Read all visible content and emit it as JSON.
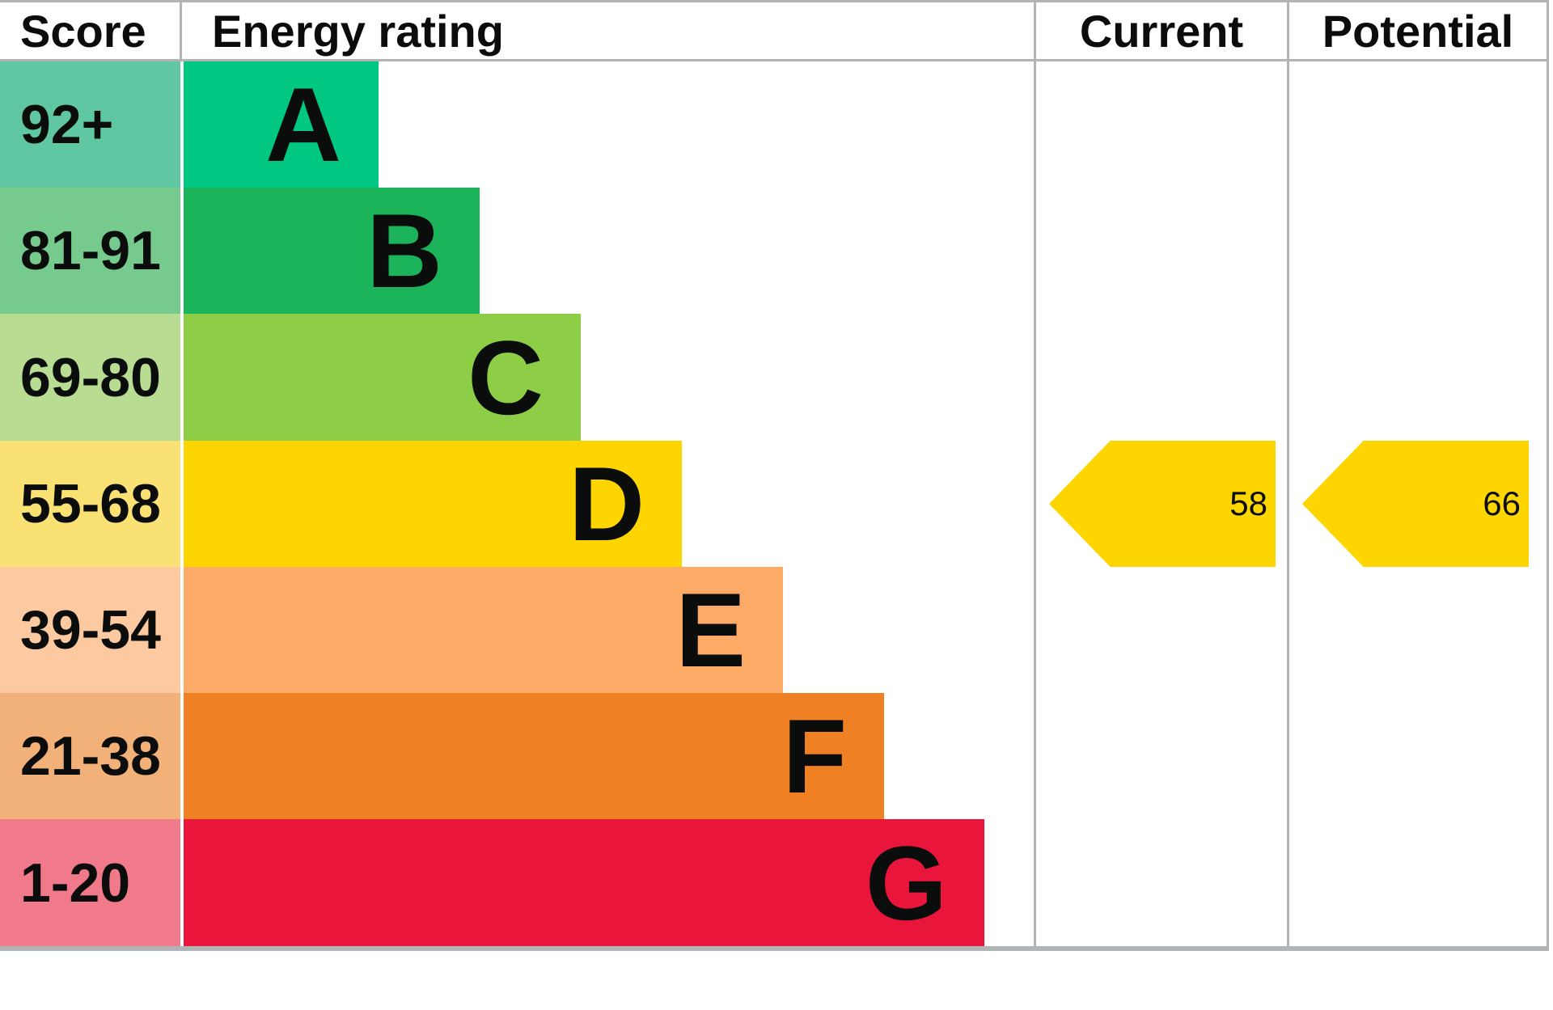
{
  "header": {
    "score": "Score",
    "energy_rating": "Energy rating",
    "current": "Current",
    "potential": "Potential"
  },
  "bands": [
    {
      "letter": "A",
      "score_range": "92+",
      "color": "#00c781",
      "tint": "#5fc7a1"
    },
    {
      "letter": "B",
      "score_range": "81-91",
      "color": "#1cb45a",
      "tint": "#76ca8e"
    },
    {
      "letter": "C",
      "score_range": "69-80",
      "color": "#8dce46",
      "tint": "#b8dc92"
    },
    {
      "letter": "D",
      "score_range": "55-68",
      "color": "#ffd500",
      "tint": "#fae174"
    },
    {
      "letter": "E",
      "score_range": "39-54",
      "color": "#fcaa65",
      "tint": "#fcc9a1"
    },
    {
      "letter": "F",
      "score_range": "21-38",
      "color": "#ef8023",
      "tint": "#f2b179"
    },
    {
      "letter": "G",
      "score_range": "1-20",
      "color": "#e9153b",
      "tint": "#f0798a"
    }
  ],
  "markers": {
    "current": {
      "value": "58",
      "band": "D",
      "arrow_color": "#ffd500"
    },
    "potential": {
      "value": "66",
      "band": "D",
      "arrow_color": "#ffd500"
    }
  },
  "colors": {
    "border": "#b1b4b6",
    "text": "#0b0c0c",
    "background": "#ffffff"
  },
  "chart_data": {
    "type": "bar",
    "title": "Energy rating",
    "orientation": "horizontal",
    "categories": [
      "A",
      "B",
      "C",
      "D",
      "E",
      "F",
      "G"
    ],
    "score_ranges": [
      "92+",
      "81-91",
      "69-80",
      "55-68",
      "39-54",
      "21-38",
      "1-20"
    ],
    "bar_relative_widths": [
      0.24,
      0.37,
      0.5,
      0.62,
      0.75,
      0.87,
      1.0
    ],
    "band_colors": [
      "#00c781",
      "#1cb45a",
      "#8dce46",
      "#ffd500",
      "#fcaa65",
      "#ef8023",
      "#e9153b"
    ],
    "grid": false,
    "markers": [
      {
        "label": "Current",
        "value": 58,
        "band": "D"
      },
      {
        "label": "Potential",
        "value": 66,
        "band": "D"
      }
    ]
  }
}
